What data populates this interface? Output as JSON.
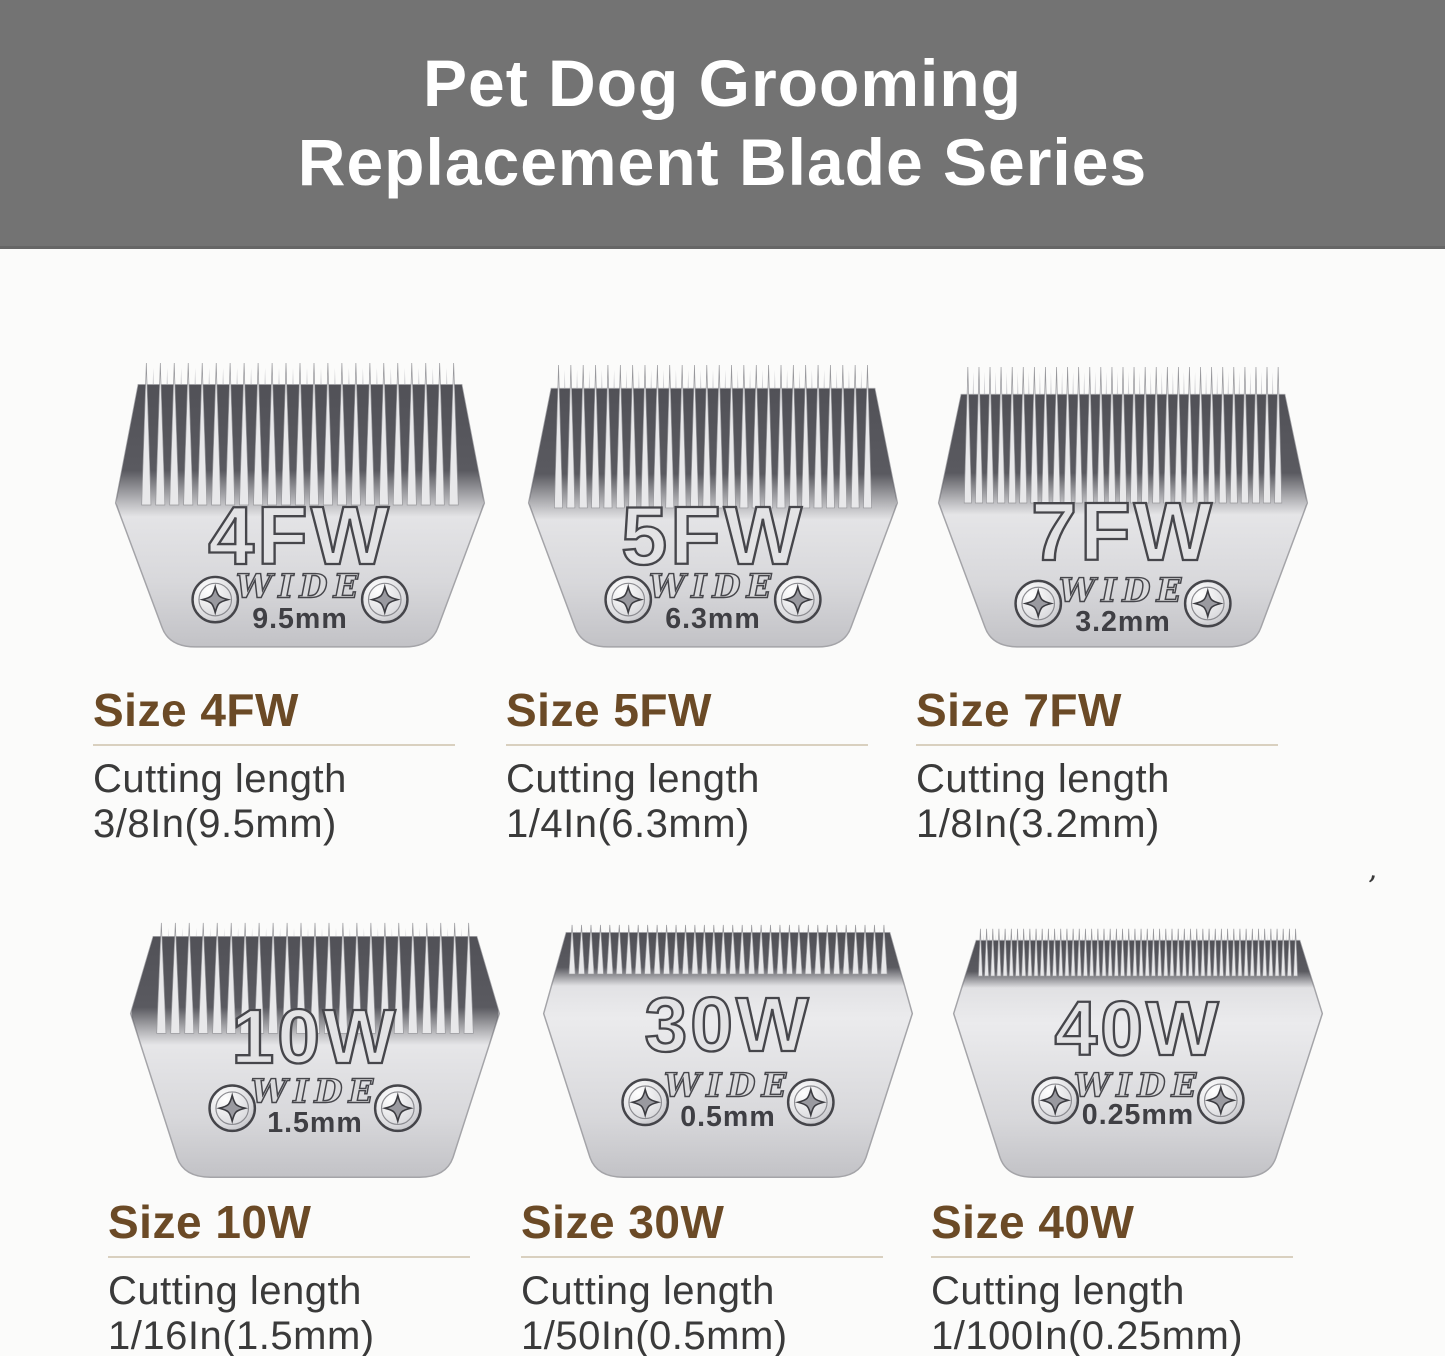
{
  "header": {
    "title_line1": "Pet Dog Grooming",
    "title_line2": "Replacement Blade Series"
  },
  "items": [
    {
      "blade_label": "4FW",
      "wide_label": "WIDE",
      "mm_label": "9.5mm",
      "size_heading": "Size 4FW",
      "cutting_length_label": "Cutting length",
      "cutting_length_value": "3/8In(9.5mm)"
    },
    {
      "blade_label": "5FW",
      "wide_label": "WIDE",
      "mm_label": "6.3mm",
      "size_heading": "Size 5FW",
      "cutting_length_label": "Cutting length",
      "cutting_length_value": "1/4In(6.3mm)"
    },
    {
      "blade_label": "7FW",
      "wide_label": "WIDE",
      "mm_label": "3.2mm",
      "size_heading": "Size 7FW",
      "cutting_length_label": "Cutting length",
      "cutting_length_value": "1/8In(3.2mm)"
    },
    {
      "blade_label": "10W",
      "wide_label": "WIDE",
      "mm_label": "1.5mm",
      "size_heading": "Size 10W",
      "cutting_length_label": "Cutting length",
      "cutting_length_value": "1/16In(1.5mm)"
    },
    {
      "blade_label": "30W",
      "wide_label": "WIDE",
      "mm_label": "0.5mm",
      "size_heading": "Size 30W",
      "cutting_length_label": "Cutting length",
      "cutting_length_value": "1/50In(0.5mm)"
    },
    {
      "blade_label": "40W",
      "wide_label": "WIDE",
      "mm_label": "0.25mm",
      "size_heading": "Size 40W",
      "cutting_length_label": "Cutting length",
      "cutting_length_value": "1/100In(0.25mm)"
    }
  ],
  "colors": {
    "page_bg": "#fbfbfa",
    "banner_bg": "#737373",
    "banner_text": "#ffffff",
    "heading": "#6b4a26",
    "divider": "#d9d0bf",
    "body_text": "#3a3a3a",
    "blade_engraving": "#46464b"
  },
  "stray_mark": "’"
}
